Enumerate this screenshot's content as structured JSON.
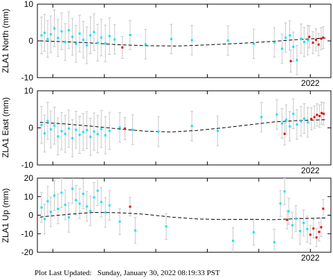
{
  "footer": {
    "label": "Plot Last Updated:",
    "value": "Sunday, January 30, 2022 08:19:33 PST"
  },
  "colors": {
    "data_point": "#00e5ff",
    "recent_point": "#e60000",
    "error_bar": "#c8c8c8",
    "trend_line": "#000000"
  },
  "chart_data": [
    {
      "type": "scatter",
      "title": "",
      "ylabel": "ZLA1 North (mm)",
      "xlabel": "",
      "ylim": [
        -10,
        10
      ],
      "yticks": [
        -10,
        0,
        10
      ],
      "x_tick_labels": [
        "2022"
      ],
      "x_range": [
        2016.7,
        2022.4
      ],
      "grid": false,
      "series": [
        {
          "role": "observations",
          "x": [
            2016.78,
            2016.84,
            2016.9,
            2016.96,
            2017.03,
            2017.1,
            2017.17,
            2017.24,
            2017.31,
            2017.38,
            2017.45,
            2017.52,
            2017.59,
            2017.66,
            2017.73,
            2017.8,
            2017.87,
            2017.94,
            2018.02,
            2018.1,
            2018.2,
            2018.5,
            2018.8,
            2019.3,
            2019.7,
            2020.4,
            2020.9,
            2021.3,
            2021.45,
            2021.52,
            2021.6,
            2021.67,
            2021.74,
            2021.82,
            2021.88,
            2021.95
          ],
          "y": [
            1.5,
            2.2,
            0.5,
            1.8,
            3.4,
            0.8,
            2.6,
            -0.3,
            2.9,
            1.1,
            -0.8,
            2.0,
            0.3,
            -1.2,
            1.5,
            2.4,
            -0.5,
            0.9,
            -0.7,
            1.3,
            0.4,
            1.6,
            -0.9,
            0.5,
            0.2,
            0.1,
            -0.8,
            -0.4,
            -2.1,
            0.9,
            1.5,
            -1.6,
            -5.2,
            0.6,
            -0.3,
            0.2
          ],
          "error": [
            5,
            5,
            5,
            5,
            5,
            5,
            5,
            5,
            5,
            5,
            5,
            5,
            5,
            5,
            5,
            5,
            5,
            5,
            5,
            5,
            4,
            4,
            4,
            4,
            4,
            4,
            4,
            4,
            4,
            4,
            4,
            4,
            4,
            4,
            4,
            4
          ]
        },
        {
          "role": "recent",
          "x": [
            2018.35,
            2021.62,
            2021.98,
            2022.05,
            2022.11,
            2022.16,
            2022.21,
            2022.25
          ],
          "y": [
            -1.8,
            -5.5,
            1.1,
            -0.5,
            0.3,
            -1.0,
            0.6,
            0.9
          ],
          "error": [
            3,
            3,
            3,
            3,
            3,
            3,
            3,
            3
          ]
        }
      ],
      "trend": {
        "x": [
          2016.75,
          2017.2,
          2017.8,
          2018.2,
          2018.8,
          2019.4,
          2020.0,
          2020.6,
          2021.2,
          2021.7,
          2022.3
        ],
        "y": [
          0.0,
          -0.2,
          -0.6,
          -1.0,
          -1.3,
          -1.4,
          -1.1,
          -0.7,
          -0.2,
          0.3,
          0.8
        ]
      }
    },
    {
      "type": "scatter",
      "title": "",
      "ylabel": "ZLA1 East (mm)",
      "xlabel": "",
      "ylim": [
        -10,
        10
      ],
      "yticks": [
        -10,
        0,
        10
      ],
      "x_tick_labels": [
        "2022"
      ],
      "x_range": [
        2016.7,
        2022.4
      ],
      "grid": false,
      "series": [
        {
          "role": "observations",
          "x": [
            2016.78,
            2016.84,
            2016.9,
            2016.96,
            2017.03,
            2017.1,
            2017.17,
            2017.24,
            2017.31,
            2017.38,
            2017.45,
            2017.52,
            2017.59,
            2017.66,
            2017.73,
            2017.8,
            2017.87,
            2017.94,
            2018.02,
            2018.1,
            2018.3,
            2018.55,
            2019.05,
            2019.7,
            2020.2,
            2021.05,
            2021.35,
            2021.45,
            2021.53,
            2021.6,
            2021.67,
            2021.74,
            2021.82,
            2021.88,
            2021.95
          ],
          "y": [
            0.8,
            -1.5,
            1.9,
            -0.4,
            0.6,
            -2.3,
            -0.9,
            -1.6,
            -0.2,
            -2.8,
            -0.5,
            -1.9,
            -1.1,
            -0.6,
            -2.4,
            -1.0,
            -1.7,
            -0.3,
            -2.0,
            -0.8,
            0.1,
            -0.5,
            -1.0,
            0.5,
            -0.8,
            2.9,
            3.6,
            1.2,
            2.2,
            0.4,
            3.8,
            0.9,
            1.8,
            2.5,
            1.5
          ],
          "error": [
            5,
            5,
            5,
            5,
            5,
            5,
            5,
            5,
            5,
            5,
            5,
            5,
            5,
            5,
            5,
            5,
            5,
            5,
            5,
            5,
            4,
            4,
            4,
            4,
            4,
            4,
            4,
            4,
            4,
            4,
            4,
            4,
            4,
            4,
            4
          ]
        },
        {
          "role": "recent",
          "x": [
            2018.4,
            2021.5,
            2022.02,
            2022.08,
            2022.13,
            2022.18,
            2022.22,
            2022.26
          ],
          "y": [
            -0.2,
            -1.6,
            2.4,
            2.9,
            3.5,
            3.2,
            4.0,
            3.8
          ],
          "error": [
            3,
            3,
            3,
            3,
            3,
            3,
            3,
            3
          ]
        }
      ],
      "trend": {
        "x": [
          2016.75,
          2017.2,
          2017.8,
          2018.3,
          2018.8,
          2019.3,
          2019.8,
          2020.3,
          2020.8,
          2021.3,
          2021.8,
          2022.3
        ],
        "y": [
          1.5,
          1.1,
          0.4,
          -0.3,
          -0.9,
          -1.1,
          -0.7,
          0.0,
          0.8,
          1.6,
          2.0,
          2.2
        ]
      }
    },
    {
      "type": "scatter",
      "title": "",
      "ylabel": "ZLA1 Up (mm)",
      "xlabel": "",
      "ylim": [
        -20,
        20
      ],
      "yticks": [
        -20,
        -10,
        0,
        10,
        20
      ],
      "x_tick_labels": [
        "2022"
      ],
      "x_range": [
        2016.7,
        2022.4
      ],
      "grid": false,
      "series": [
        {
          "role": "observations",
          "x": [
            2016.78,
            2016.84,
            2016.9,
            2016.96,
            2017.03,
            2017.1,
            2017.17,
            2017.24,
            2017.31,
            2017.38,
            2017.45,
            2017.52,
            2017.59,
            2017.66,
            2017.73,
            2017.8,
            2017.87,
            2017.94,
            2018.02,
            2018.1,
            2018.3,
            2018.6,
            2019.2,
            2020.5,
            2020.9,
            2021.3,
            2021.42,
            2021.5,
            2021.58,
            2021.65,
            2021.72,
            2021.8,
            2021.87,
            2021.94
          ],
          "y": [
            4.2,
            -2.1,
            7.5,
            1.8,
            10.6,
            3.4,
            12.1,
            5.6,
            -1.2,
            14.3,
            8.1,
            6.2,
            11.5,
            4.7,
            2.3,
            9.6,
            13.2,
            7.1,
            1.5,
            5.3,
            -3.5,
            -8.2,
            -6.1,
            -13.8,
            -9.2,
            -14.5,
            6.3,
            12.8,
            2.1,
            -5.4,
            -1.8,
            -8.6,
            -4.2,
            -7.5
          ],
          "error": [
            8,
            8,
            8,
            8,
            8,
            8,
            8,
            8,
            8,
            8,
            8,
            8,
            8,
            8,
            8,
            8,
            8,
            8,
            8,
            8,
            7,
            7,
            7,
            7,
            7,
            7,
            7,
            7,
            7,
            7,
            7,
            7,
            7,
            7
          ]
        },
        {
          "role": "recent",
          "x": [
            2018.5,
            2021.55,
            2022.0,
            2022.06,
            2022.12,
            2022.17,
            2022.21,
            2022.25
          ],
          "y": [
            4.6,
            -2.5,
            -10.5,
            -7.2,
            -12.0,
            -9.0,
            -6.5,
            3.5
          ],
          "error": [
            5,
            5,
            5,
            5,
            5,
            5,
            5,
            5
          ]
        }
      ],
      "trend": {
        "x": [
          2016.75,
          2017.3,
          2017.8,
          2018.3,
          2018.8,
          2019.3,
          2019.8,
          2020.3,
          2020.8,
          2021.3,
          2021.8,
          2022.3
        ],
        "y": [
          -1.0,
          0.5,
          1.5,
          1.3,
          0.5,
          -1.0,
          -2.0,
          -2.3,
          -2.2,
          -2.4,
          -1.8,
          -1.5
        ]
      }
    }
  ]
}
